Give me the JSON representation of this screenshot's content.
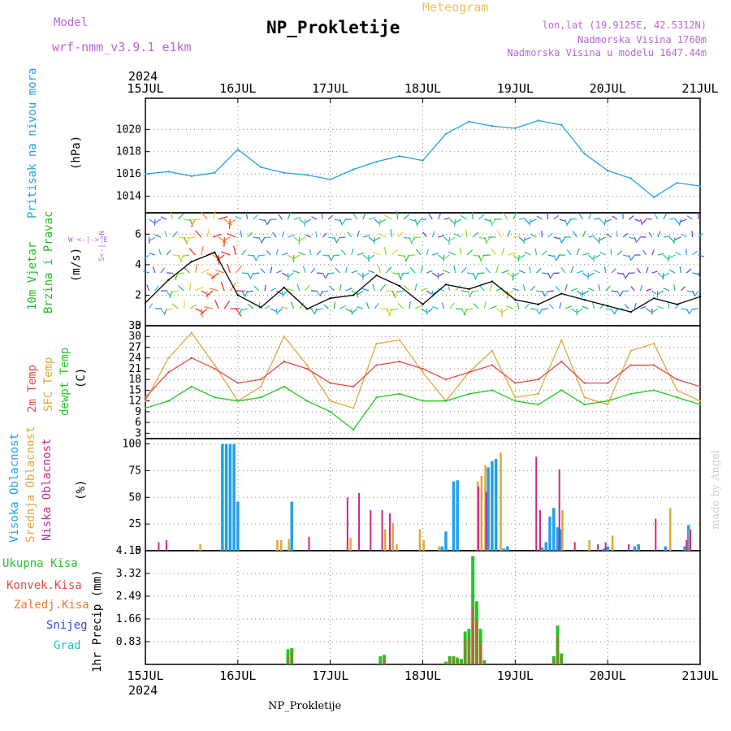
{
  "header": {
    "model_label": "Model",
    "model_name": "wrf-nmm_v3.9.1 e1km",
    "station": "NP_Prokletije",
    "meteogram": "Meteogram",
    "coords": "lon,lat (19.9125E, 42.5312N)",
    "elevation": "Nadmorska Visina 1760m",
    "elevation_model": "Nadmorska Visina u modelu 1647.44m"
  },
  "footer": {
    "station": "NP_Prokletije",
    "credit": "made by Angel"
  },
  "colors": {
    "pressure": "#22a0e8",
    "wind_label": "#22c022",
    "temp2m": "#e84848",
    "sfc": "#e0a838",
    "dewpt": "#22c822",
    "high": "#22a0e8",
    "mid": "#e0a838",
    "low": "#c8288c",
    "precip_total": "#22c822",
    "precip_conv": "#e84848",
    "precip_froz": "#f07830",
    "snow": "#3848e8",
    "graupel": "#22c0c0"
  },
  "chart_data": [
    {
      "type": "line",
      "year_label": "2024",
      "x_ticks": [
        "15JUL",
        "16JUL",
        "17JUL",
        "18JUL",
        "19JUL",
        "20JUL",
        "21JUL"
      ],
      "ylabel": [
        "Pritisak na nivou mora",
        "(hPa)"
      ],
      "ylim": [
        1012.5,
        1022.8
      ],
      "yticks": [
        1014,
        1016,
        1018,
        1020
      ],
      "x_hours": [
        0,
        6,
        12,
        18,
        24,
        30,
        36,
        42,
        48,
        54,
        60,
        66,
        72,
        78,
        84,
        90,
        96,
        102,
        108,
        114,
        120,
        126,
        132,
        138,
        144
      ],
      "series": [
        {
          "name": "",
          "values": [
            1016.0,
            1016.2,
            1015.8,
            1016.1,
            1018.2,
            1016.6,
            1016.1,
            1015.9,
            1015.5,
            1016.4,
            1017.1,
            1017.6,
            1017.2,
            1019.6,
            1020.7,
            1020.3,
            1020.1,
            1020.8,
            1020.4,
            1017.8,
            1016.3,
            1015.6,
            1013.9,
            1015.2,
            1014.9
          ]
        }
      ]
    },
    {
      "type": "line",
      "ylabel": [
        "10m Vjetar",
        "Brzina i Pravac",
        "(m/s)"
      ],
      "compass": "W <-|-> E",
      "compass_ns": "S<-|->N",
      "ylim": [
        0,
        7.4
      ],
      "yticks": [
        0,
        2,
        4,
        6
      ],
      "x_hours": [
        0,
        6,
        12,
        18,
        24,
        30,
        36,
        42,
        48,
        54,
        60,
        66,
        72,
        78,
        84,
        90,
        96,
        102,
        108,
        114,
        120,
        126,
        132,
        138,
        144
      ],
      "series": [
        {
          "name": "",
          "values": [
            1.5,
            3.0,
            4.2,
            4.8,
            2.0,
            1.2,
            2.5,
            1.1,
            1.8,
            2.0,
            3.3,
            2.6,
            1.4,
            2.7,
            2.4,
            2.9,
            1.7,
            1.4,
            2.1,
            1.7,
            1.3,
            0.9,
            1.8,
            1.4,
            1.9
          ]
        }
      ]
    },
    {
      "type": "line",
      "ylabel": [
        "2m Temp",
        "SFC Temp",
        "dewpt Temp",
        "(C)"
      ],
      "ylim": [
        1.5,
        33
      ],
      "yticks": [
        3,
        6,
        9,
        12,
        15,
        18,
        21,
        24,
        27,
        30,
        33
      ],
      "x_hours": [
        0,
        6,
        12,
        18,
        24,
        30,
        36,
        42,
        48,
        54,
        60,
        66,
        72,
        78,
        84,
        90,
        96,
        102,
        108,
        114,
        120,
        126,
        132,
        138,
        144
      ],
      "series": [
        {
          "name": "2m Temp",
          "values": [
            13,
            20,
            24,
            21,
            17,
            18,
            23,
            21,
            17,
            16,
            22,
            23,
            21,
            18,
            20,
            22,
            17,
            18,
            23,
            17,
            17,
            22,
            22,
            18,
            16
          ]
        },
        {
          "name": "SFC Temp",
          "values": [
            12,
            24,
            31,
            22,
            12,
            16,
            30,
            22,
            12,
            10,
            28,
            29,
            20,
            12,
            20,
            26,
            13,
            14,
            29,
            13,
            11,
            26,
            28,
            15,
            12
          ]
        },
        {
          "name": "dewpt Temp",
          "values": [
            10,
            12,
            16,
            13,
            12,
            13,
            16,
            12,
            9,
            4,
            13,
            14,
            12,
            12,
            14,
            15,
            12,
            11,
            15,
            11,
            12,
            14,
            15,
            13,
            11
          ]
        }
      ]
    },
    {
      "type": "bar",
      "ylabel": [
        "Visoka Oblacnost",
        "Srednja Oblacnost",
        "Niska Oblacnost",
        "(%)"
      ],
      "ylim": [
        0,
        105
      ],
      "yticks": [
        0,
        25,
        50,
        75,
        100
      ],
      "series": [
        {
          "name": "Visoka Oblacnost",
          "x_hours": [
            20,
            21,
            22,
            23,
            24,
            38,
            77,
            78,
            80,
            81,
            89,
            90,
            91,
            93,
            94,
            103,
            104,
            105,
            106,
            107,
            108,
            119,
            120,
            127,
            128,
            135,
            140,
            141
          ],
          "values": [
            100,
            100,
            100,
            100,
            46,
            46,
            4,
            18,
            65,
            66,
            78,
            84,
            86,
            2,
            4,
            3,
            8,
            32,
            40,
            22,
            20,
            2,
            4,
            4,
            6,
            4,
            4,
            24
          ]
        },
        {
          "name": "Srednja Oblacnost",
          "x_hours": [
            14,
            34,
            35,
            37,
            53,
            62,
            64,
            65,
            71,
            72,
            76,
            86,
            87,
            88,
            92,
            108,
            115,
            121,
            136,
            141
          ],
          "values": [
            6,
            10,
            10,
            11,
            12,
            20,
            26,
            6,
            20,
            10,
            4,
            65,
            70,
            80,
            92,
            38,
            10,
            14,
            40,
            20
          ]
        },
        {
          "name": "Niska Oblacnost",
          "x_hours": [
            3,
            5,
            42,
            52,
            55,
            58,
            61,
            63,
            86,
            88,
            101,
            102,
            107,
            111,
            117,
            119,
            125,
            132,
            140,
            141
          ],
          "values": [
            8,
            10,
            13,
            50,
            54,
            38,
            38,
            35,
            60,
            55,
            88,
            38,
            76,
            8,
            6,
            8,
            6,
            30,
            10,
            20
          ]
        }
      ]
    },
    {
      "type": "bar",
      "ylabel": [
        "1hr Precip (mm)"
      ],
      "legend": [
        "Ukupna Kisa",
        "Konvek.Kisa",
        "Zaledj.Kisa",
        "Snijeg",
        "Grad"
      ],
      "ylim": [
        0,
        4.15
      ],
      "yticks": [
        0.83,
        1.66,
        2.49,
        3.32,
        4.15
      ],
      "ytick_labels": [
        "0.83",
        "1.66",
        "2.49",
        "3.32",
        "4.15"
      ],
      "series": [
        {
          "name": "Ukupna Kisa",
          "x_hours": [
            37,
            38,
            61,
            62,
            78,
            79,
            80,
            81,
            82,
            83,
            84,
            85,
            86,
            87,
            88,
            106,
            107,
            108
          ],
          "values": [
            0.55,
            0.6,
            0.3,
            0.35,
            0.1,
            0.3,
            0.3,
            0.25,
            0.2,
            1.2,
            1.3,
            3.95,
            2.3,
            1.3,
            0.15,
            0.3,
            1.42,
            0.4
          ]
        },
        {
          "name": "Konvek.Kisa",
          "x_hours": [
            37,
            38,
            61,
            62,
            78,
            79,
            80,
            81,
            82,
            83,
            84,
            85,
            86,
            87,
            88,
            106,
            107,
            108
          ],
          "values": [
            0.3,
            0.5,
            0.1,
            0.2,
            0.05,
            0.25,
            0.25,
            0.2,
            0.15,
            0.9,
            1.0,
            2.1,
            1.6,
            0.8,
            0.1,
            0.2,
            1.1,
            0.3
          ]
        }
      ]
    }
  ]
}
